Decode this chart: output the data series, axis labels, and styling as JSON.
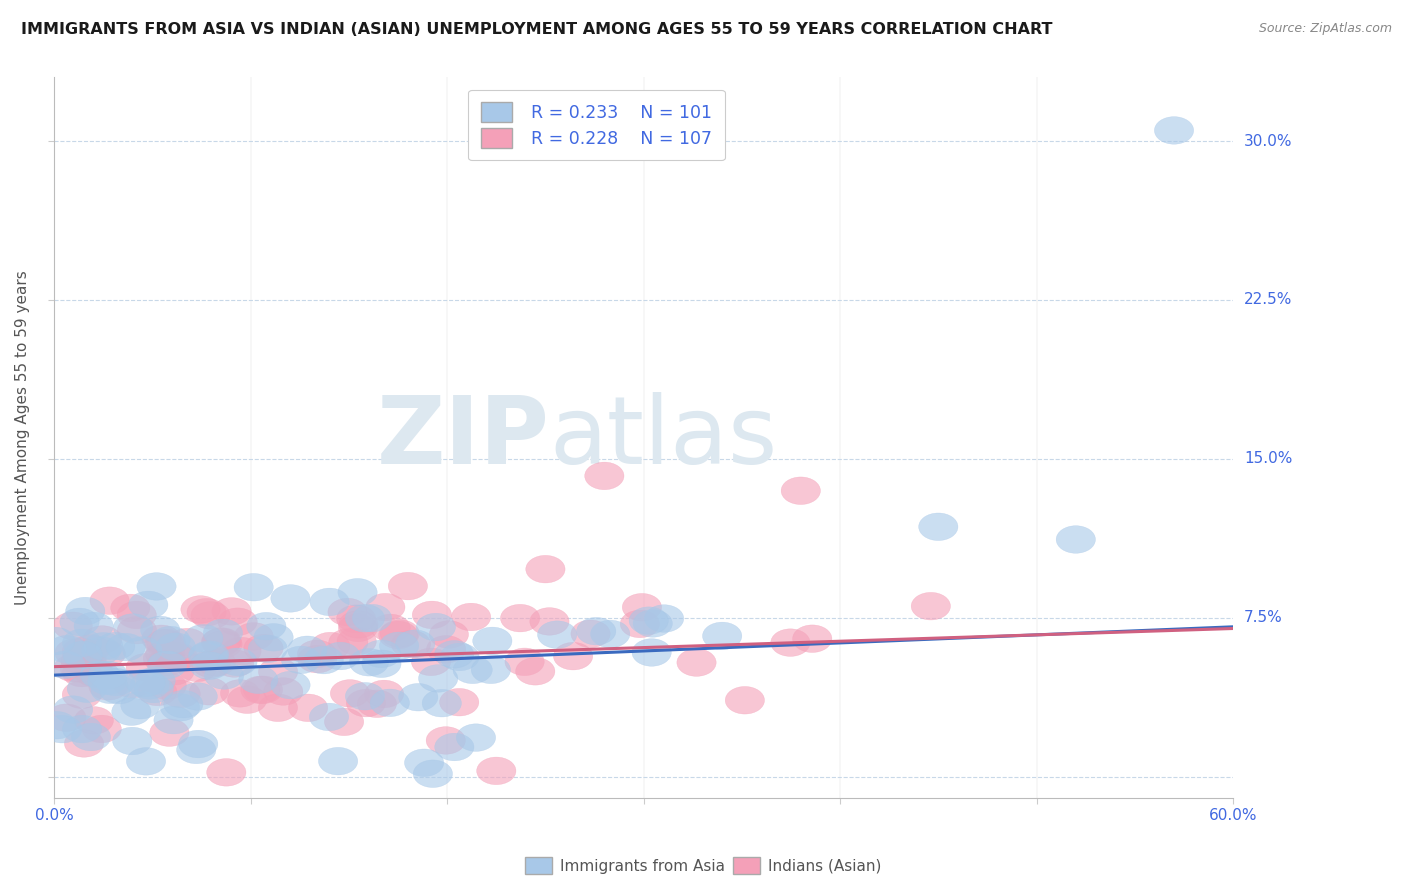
{
  "title": "IMMIGRANTS FROM ASIA VS INDIAN (ASIAN) UNEMPLOYMENT AMONG AGES 55 TO 59 YEARS CORRELATION CHART",
  "source": "Source: ZipAtlas.com",
  "ylabel": "Unemployment Among Ages 55 to 59 years",
  "xlim": [
    0.0,
    0.6
  ],
  "ylim": [
    -0.01,
    0.33
  ],
  "xticks": [
    0.0,
    0.1,
    0.2,
    0.3,
    0.4,
    0.5,
    0.6
  ],
  "xticklabels": [
    "0.0%",
    "",
    "",
    "",
    "",
    "",
    "60.0%"
  ],
  "yticks": [
    0.0,
    0.075,
    0.15,
    0.225,
    0.3
  ],
  "yticklabels_right": [
    "",
    "7.5%",
    "15.0%",
    "22.5%",
    "30.0%"
  ],
  "color_blue": "#a8c8e8",
  "color_pink": "#f4a0b8",
  "line_blue": "#3a6abf",
  "line_pink": "#d06080",
  "legend_blue_r": "R = 0.233",
  "legend_blue_n": "N = 101",
  "legend_pink_r": "R = 0.228",
  "legend_pink_n": "N = 107",
  "axis_color": "#4169e1",
  "grid_color": "#c8d8e8",
  "watermark_color": "#dde8f0",
  "blue_slope": 0.038,
  "blue_intercept": 0.048,
  "pink_slope": 0.03,
  "pink_intercept": 0.052
}
